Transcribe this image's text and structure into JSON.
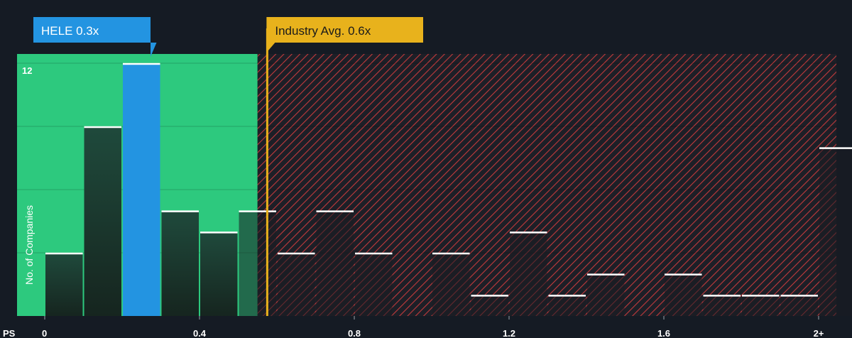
{
  "chart_data": {
    "type": "bar",
    "xlabel": "PS",
    "ylabel": "No. of Companies",
    "x_ticks": [
      "0",
      "0.4",
      "0.8",
      "1.2",
      "1.6",
      "2+"
    ],
    "x_tick_values": [
      0,
      0.4,
      0.8,
      1.2,
      1.6,
      2.0
    ],
    "y_ticks": [
      "12"
    ],
    "y_tick_values": [
      12
    ],
    "ylim": [
      0,
      12.5
    ],
    "bin_width": 0.1,
    "bins": [
      {
        "start": 0.0,
        "value": 3
      },
      {
        "start": 0.1,
        "value": 9
      },
      {
        "start": 0.2,
        "value": 12
      },
      {
        "start": 0.3,
        "value": 5
      },
      {
        "start": 0.4,
        "value": 4
      },
      {
        "start": 0.5,
        "value": 5
      },
      {
        "start": 0.6,
        "value": 3
      },
      {
        "start": 0.7,
        "value": 5
      },
      {
        "start": 0.8,
        "value": 3
      },
      {
        "start": 0.9,
        "value": 0
      },
      {
        "start": 1.0,
        "value": 3
      },
      {
        "start": 1.1,
        "value": 1
      },
      {
        "start": 1.2,
        "value": 4
      },
      {
        "start": 1.3,
        "value": 1
      },
      {
        "start": 1.4,
        "value": 2
      },
      {
        "start": 1.5,
        "value": 0
      },
      {
        "start": 1.6,
        "value": 2
      },
      {
        "start": 1.7,
        "value": 1
      },
      {
        "start": 1.8,
        "value": 1
      },
      {
        "start": 1.9,
        "value": 1
      },
      {
        "start": 2.0,
        "value": 8
      }
    ],
    "highlight": {
      "label": "HELE 0.3x",
      "value": 0.3,
      "bin_index": 2,
      "color": "#2394e1"
    },
    "industry_avg": {
      "label": "Industry Avg. 0.6x",
      "value": 0.575,
      "color": "#e8b21c"
    },
    "fair_zone_color": "#2dc97e",
    "overvalued_color": "#d33b3f",
    "background": "#151b24",
    "grid": true
  }
}
